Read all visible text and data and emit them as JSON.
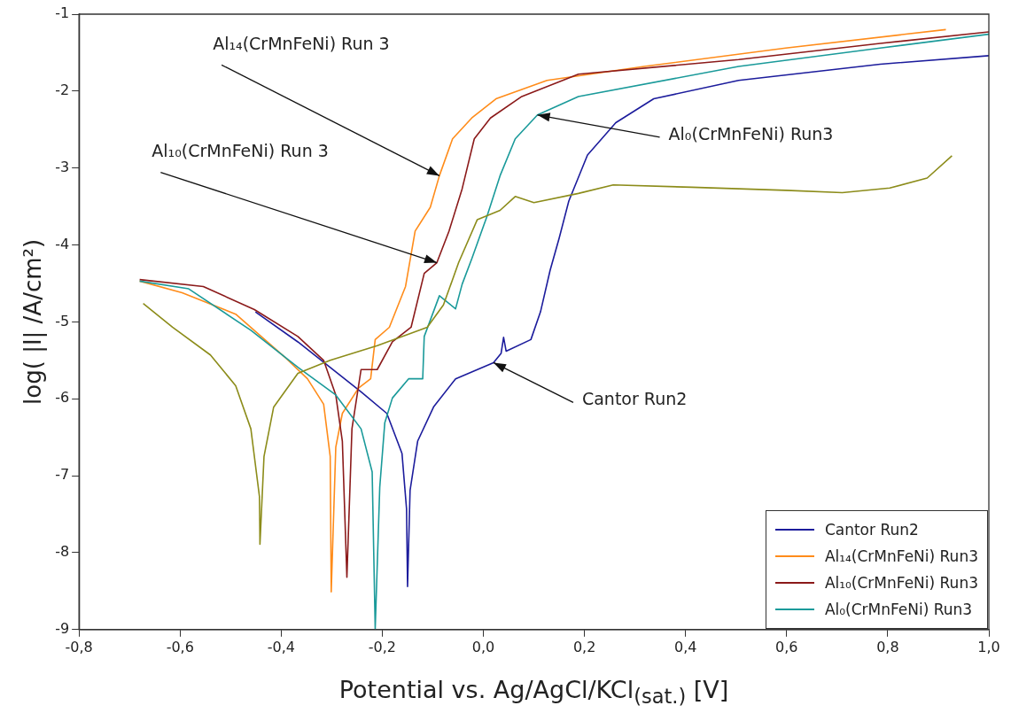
{
  "chart_data": {
    "type": "line",
    "xlabel": "Potential vs. Ag/AgCl/KCl$_{(sat.)}$ [V]",
    "ylabel": "log( |I| /A/cm²)",
    "xlim": [
      -0.8,
      1.0
    ],
    "ylim": [
      -9,
      -1
    ],
    "xticks": [
      {
        "value": -0.8,
        "label": "-0,8"
      },
      {
        "value": -0.6,
        "label": "-0,6"
      },
      {
        "value": -0.4,
        "label": "-0,4"
      },
      {
        "value": -0.2,
        "label": "-0,2"
      },
      {
        "value": 0,
        "label": "0,0"
      },
      {
        "value": 0.2,
        "label": "0,2"
      },
      {
        "value": 0.4,
        "label": "0,4"
      },
      {
        "value": 0.6,
        "label": "0,6"
      },
      {
        "value": 0.8,
        "label": "0,8"
      },
      {
        "value": 1.0,
        "label": "1,0"
      }
    ],
    "yticks": [
      -9,
      -8,
      -7,
      -6,
      -5,
      -4,
      -3,
      -2,
      -1
    ],
    "grid": false,
    "legend": "bottom right",
    "marker": "none",
    "line_style": "solid",
    "series": [
      {
        "name": "Cantor Run2",
        "color": "#1c1c9c",
        "x": [
          -0.451,
          -0.367,
          -0.242,
          -0.191,
          -0.161,
          -0.152,
          -0.15,
          -0.145,
          -0.13,
          -0.098,
          -0.055,
          0.02,
          0.035,
          0.04,
          0.045,
          0.094,
          0.113,
          0.132,
          0.15,
          0.169,
          0.206,
          0.262,
          0.337,
          0.505,
          0.785,
          1.0
        ],
        "values": [
          -4.87,
          -5.26,
          -5.91,
          -6.19,
          -6.71,
          -7.43,
          -8.44,
          -7.19,
          -6.55,
          -6.1,
          -5.74,
          -5.53,
          -5.41,
          -5.2,
          -5.38,
          -5.23,
          -4.87,
          -4.33,
          -3.91,
          -3.43,
          -2.83,
          -2.41,
          -2.1,
          -1.86,
          -1.65,
          -1.54
        ]
      },
      {
        "name": "Al₁₄(CrMnFeNi) Run3",
        "color": "#ff8c1a",
        "x": [
          -0.68,
          -0.596,
          -0.49,
          -0.391,
          -0.348,
          -0.316,
          -0.303,
          -0.301,
          -0.292,
          -0.279,
          -0.247,
          -0.223,
          -0.214,
          -0.186,
          -0.154,
          -0.135,
          -0.105,
          -0.087,
          -0.061,
          -0.023,
          0.025,
          0.126,
          0.318,
          0.598,
          0.915
        ],
        "values": [
          -4.47,
          -4.62,
          -4.9,
          -5.47,
          -5.74,
          -6.07,
          -6.75,
          -8.51,
          -6.63,
          -6.19,
          -5.86,
          -5.74,
          -5.23,
          -5.07,
          -4.54,
          -3.82,
          -3.51,
          -3.1,
          -2.62,
          -2.35,
          -2.1,
          -1.86,
          -1.68,
          -1.44,
          -1.2
        ]
      },
      {
        "name": "Al₁₀(CrMnFeNi) Run3",
        "color": "#8b1a1a",
        "x": [
          -0.68,
          -0.554,
          -0.453,
          -0.367,
          -0.316,
          -0.292,
          -0.279,
          -0.27,
          -0.26,
          -0.242,
          -0.21,
          -0.18,
          -0.143,
          -0.117,
          -0.092,
          -0.068,
          -0.042,
          -0.018,
          0.014,
          0.076,
          0.188,
          0.505,
          0.785,
          1.0
        ],
        "values": [
          -4.45,
          -4.54,
          -4.84,
          -5.19,
          -5.5,
          -5.95,
          -6.55,
          -8.32,
          -6.39,
          -5.62,
          -5.62,
          -5.26,
          -5.07,
          -4.37,
          -4.23,
          -3.82,
          -3.27,
          -2.62,
          -2.35,
          -2.07,
          -1.78,
          -1.59,
          -1.38,
          -1.23
        ]
      },
      {
        "name": "Al₀(CrMnFeNi) Run3",
        "color": "#1a9a9a",
        "x": [
          -0.68,
          -0.583,
          -0.46,
          -0.367,
          -0.292,
          -0.242,
          -0.22,
          -0.214,
          -0.205,
          -0.195,
          -0.18,
          -0.148,
          -0.12,
          -0.117,
          -0.087,
          -0.055,
          -0.042,
          -0.023,
          0.007,
          0.033,
          0.063,
          0.107,
          0.188,
          0.505,
          0.785,
          1.0
        ],
        "values": [
          -4.47,
          -4.57,
          -5.11,
          -5.59,
          -5.95,
          -6.39,
          -6.95,
          -8.99,
          -7.15,
          -6.31,
          -5.99,
          -5.74,
          -5.74,
          -5.19,
          -4.66,
          -4.83,
          -4.51,
          -4.18,
          -3.63,
          -3.1,
          -2.62,
          -2.31,
          -2.07,
          -1.68,
          -1.44,
          -1.26
        ]
      },
      {
        "color": "#8c8c1a",
        "x": [
          -0.673,
          -0.615,
          -0.54,
          -0.49,
          -0.46,
          -0.443,
          -0.442,
          -0.434,
          -0.415,
          -0.367,
          -0.303,
          -0.21,
          -0.111,
          -0.079,
          -0.049,
          -0.012,
          0.033,
          0.063,
          0.1,
          0.188,
          0.257,
          0.412,
          0.598,
          0.71,
          0.804,
          0.878,
          0.927
        ],
        "values": [
          -4.76,
          -5.07,
          -5.43,
          -5.83,
          -6.39,
          -7.27,
          -7.89,
          -6.75,
          -6.11,
          -5.67,
          -5.5,
          -5.31,
          -5.07,
          -4.78,
          -4.23,
          -3.67,
          -3.55,
          -3.37,
          -3.45,
          -3.33,
          -3.22,
          -3.25,
          -3.29,
          -3.32,
          -3.26,
          -3.13,
          -2.84
        ]
      }
    ],
    "annotations": [
      {
        "text": "Al₁₄(CrMnFeNi) Run 3",
        "x": -0.087,
        "y": -3.1
      },
      {
        "text": "Al₁₀(CrMnFeNi) Run 3",
        "x": -0.092,
        "y": -4.23
      },
      {
        "text": "Al₀(CrMnFeNi) Run3",
        "x": 0.107,
        "y": -2.31
      },
      {
        "text": "Cantor Run2",
        "x": 0.02,
        "y": -5.53
      }
    ]
  }
}
